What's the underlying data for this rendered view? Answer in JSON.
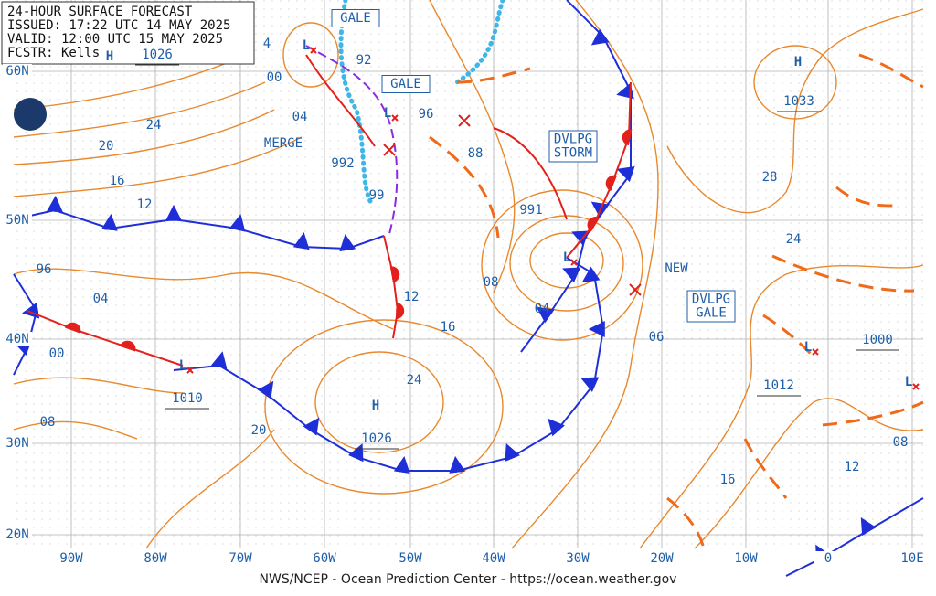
{
  "header": {
    "lines": [
      "24-HOUR SURFACE FORECAST",
      "ISSUED: 17:22 UTC 14 MAY 2025",
      "VALID: 12:00 UTC 15 MAY 2025",
      "FCSTR: Kells"
    ]
  },
  "lat_labels": [
    "60N",
    "50N",
    "40N",
    "30N",
    "20N"
  ],
  "lon_labels": [
    "90W",
    "80W",
    "70W",
    "60W",
    "50W",
    "40W",
    "30W",
    "20W",
    "10W",
    "0",
    "10E"
  ],
  "isobar_labels": [
    "1026",
    "4",
    "92",
    "00",
    "04",
    "24",
    "20",
    "16",
    "12",
    "MERGE",
    "992",
    "99",
    "96",
    "88",
    "991",
    "08",
    "04",
    "12",
    "16",
    "NEW",
    "06",
    "1033",
    "28",
    "24",
    "1000",
    "1012",
    "08",
    "12",
    "16",
    "96",
    "04",
    "00",
    "1010",
    "08",
    "20",
    "24",
    "1026"
  ],
  "boxed_labels": [
    {
      "lines": [
        "GALE"
      ]
    },
    {
      "lines": [
        "GALE"
      ]
    },
    {
      "lines": [
        "DVLPG",
        "STORM"
      ]
    },
    {
      "lines": [
        "DVLPG",
        "GALE"
      ]
    }
  ],
  "highs": [
    "H",
    "H",
    "H"
  ],
  "lows": [
    "L",
    "L",
    "L",
    "L",
    "L",
    "L"
  ],
  "footer": "NWS/NCEP - Ocean Prediction Center - https://ocean.weather.gov"
}
